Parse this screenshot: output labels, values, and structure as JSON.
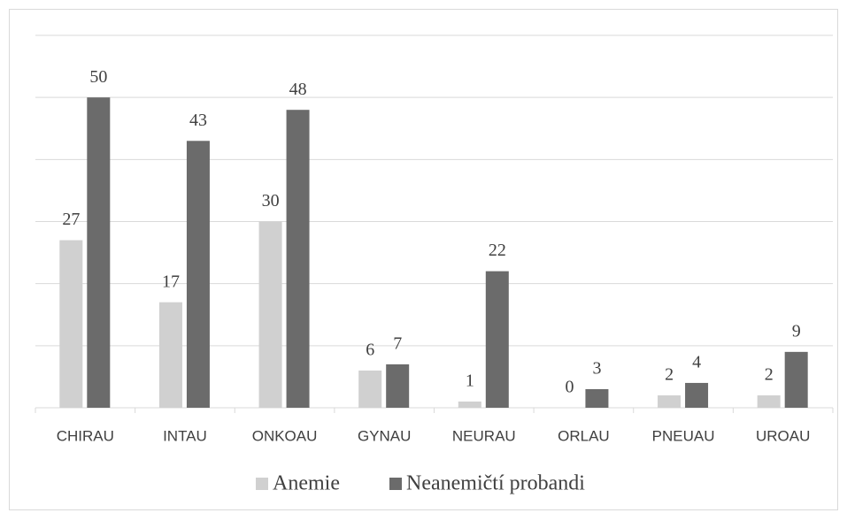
{
  "chart_data": {
    "type": "bar",
    "categories": [
      "CHIRAU",
      "INTAU",
      "ONKOAU",
      "GYNAU",
      "NEURAU",
      "ORLAU",
      "PNEUAU",
      "UROAU"
    ],
    "series": [
      {
        "name": "Anemie",
        "color": "#d0d0d0",
        "values": [
          27,
          17,
          30,
          6,
          1,
          0,
          2,
          2
        ]
      },
      {
        "name": "Neanemičtí probandi",
        "color": "#6b6b6b",
        "values": [
          50,
          43,
          48,
          7,
          22,
          3,
          4,
          9
        ]
      }
    ],
    "ylim": [
      0,
      60
    ],
    "yticks": [
      0,
      10,
      20,
      30,
      40,
      50,
      60
    ],
    "grid": true,
    "legend": "bottom"
  }
}
